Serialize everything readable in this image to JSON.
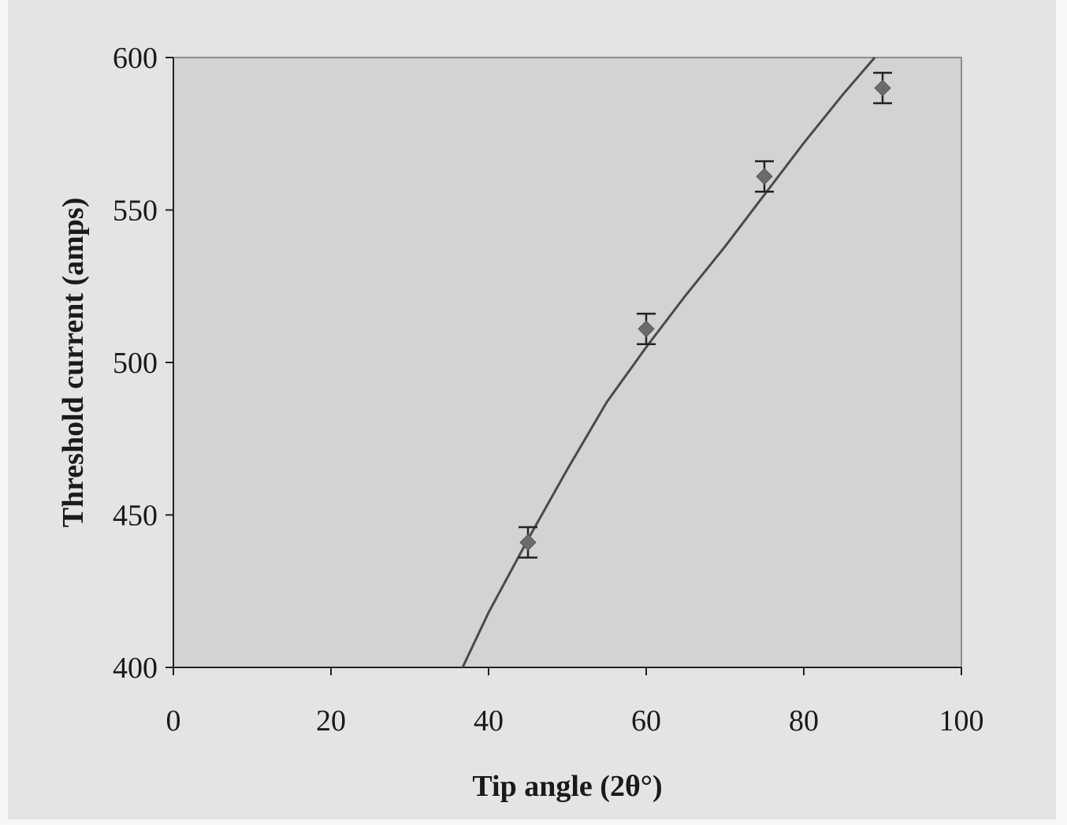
{
  "chart_data": {
    "type": "scatter",
    "title": "",
    "xlabel": "Tip angle (2θ°)",
    "ylabel": "Threshold current (amps)",
    "xlim": [
      0,
      100
    ],
    "ylim": [
      400,
      600
    ],
    "x_ticks": [
      0,
      20,
      40,
      60,
      80,
      100
    ],
    "y_ticks": [
      400,
      450,
      500,
      550,
      600
    ],
    "grid": false,
    "legend": "none",
    "series": [
      {
        "type": "scatter",
        "x": [
          45,
          60,
          75,
          90
        ],
        "y": [
          441,
          511,
          561,
          590
        ],
        "error": [
          5,
          5,
          5,
          5
        ],
        "marker": "diamond"
      },
      {
        "type": "line",
        "x": [
          36.7,
          40,
          45,
          50,
          55,
          60,
          65,
          70,
          75,
          80,
          85,
          89
        ],
        "y": [
          400,
          418,
          442,
          465,
          487,
          505,
          522,
          538,
          555,
          572,
          588,
          600
        ]
      }
    ],
    "colors": {
      "plot_bg": "#d3d3d3",
      "marker": "#6b6b6b",
      "line": "#4a4a4a",
      "frame": "#8c8c8c"
    }
  }
}
